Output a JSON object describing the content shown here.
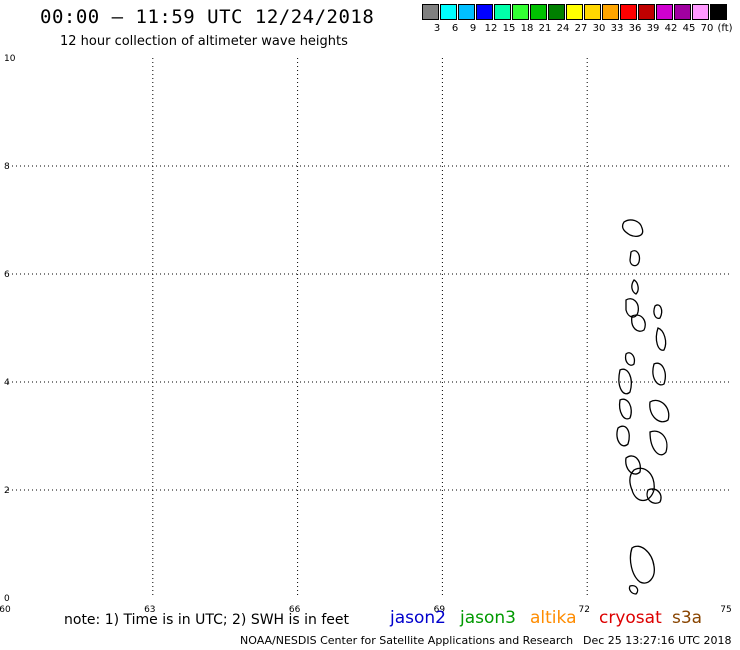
{
  "header": {
    "title": "00:00 – 11:59 UTC 12/24/2018",
    "subtitle": "12 hour collection of altimeter wave heights"
  },
  "color_scale": {
    "colors": [
      "#808080",
      "#00ffff",
      "#00bfff",
      "#0000ff",
      "#00ffaa",
      "#33ff33",
      "#00c000",
      "#008000",
      "#ffff00",
      "#ffd700",
      "#ffa500",
      "#ff0000",
      "#c00000",
      "#d000d0",
      "#a000a0",
      "#ff99ff",
      "#000000"
    ],
    "labels": [
      "3",
      "6",
      "9",
      "12",
      "15",
      "18",
      "21",
      "24",
      "27",
      "30",
      "33",
      "36",
      "39",
      "42",
      "45",
      "70",
      "(ft)"
    ]
  },
  "chart_data": {
    "type": "scatter",
    "x_ticks": [
      "60",
      "63",
      "66",
      "69",
      "72",
      "75"
    ],
    "y_ticks": [
      "0",
      "2",
      "4",
      "6",
      "8",
      "10"
    ],
    "xlim": [
      60,
      75
    ],
    "ylim": [
      0,
      10
    ],
    "grid": true,
    "coastline_color": "#000000",
    "series": []
  },
  "footer": {
    "note": "note: 1) Time is in UTC; 2) SWH is in feet",
    "satellites": [
      {
        "name": "jason2",
        "color": "#0000cc"
      },
      {
        "name": "jason3",
        "color": "#009900"
      },
      {
        "name": "altika",
        "color": "#ff8c00"
      },
      {
        "name": "cryosat",
        "color": "#dd0000"
      },
      {
        "name": "s3a",
        "color": "#884400"
      }
    ],
    "credit": "NOAA/NESDIS Center for Satellite Applications and Research",
    "timestamp": "Dec 25 13:27:16 UTC 2018"
  }
}
